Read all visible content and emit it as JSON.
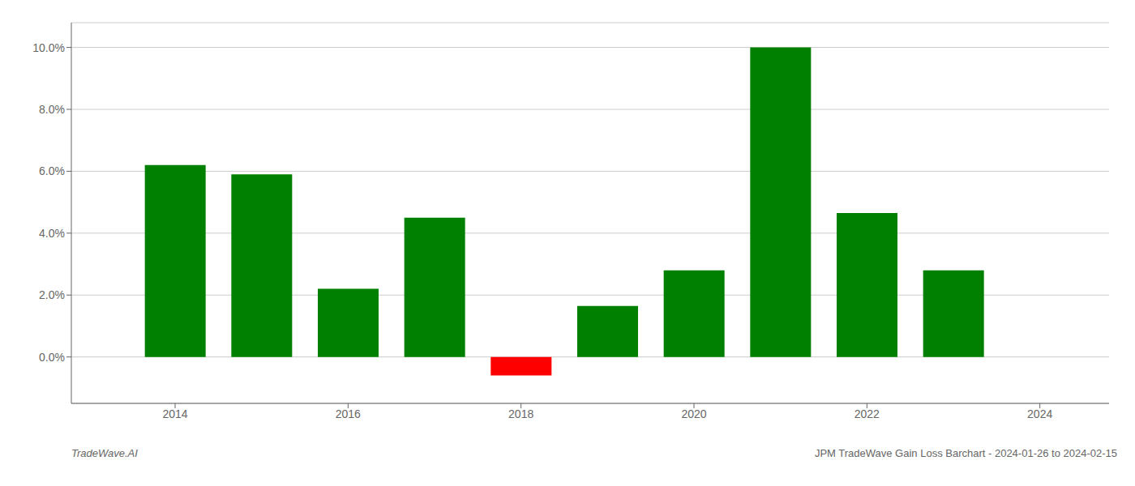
{
  "chart_data": {
    "type": "bar",
    "x": [
      2014,
      2015,
      2016,
      2017,
      2018,
      2019,
      2020,
      2021,
      2022,
      2023
    ],
    "values": [
      0.062,
      0.059,
      0.022,
      0.045,
      -0.006,
      0.0165,
      0.028,
      0.1,
      0.0465,
      0.028
    ],
    "colors": [
      "#008000",
      "#008000",
      "#008000",
      "#008000",
      "#ff0000",
      "#008000",
      "#008000",
      "#008000",
      "#008000",
      "#008000"
    ],
    "xlim": [
      2012.8,
      2024.8
    ],
    "xticks": [
      2014,
      2016,
      2018,
      2020,
      2022,
      2024
    ],
    "ylim": [
      -0.015,
      0.108
    ],
    "yticks": [
      {
        "value": 0.0,
        "label": "0.0%"
      },
      {
        "value": 0.02,
        "label": "2.0%"
      },
      {
        "value": 0.04,
        "label": "4.0%"
      },
      {
        "value": 0.06,
        "label": "6.0%"
      },
      {
        "value": 0.08,
        "label": "8.0%"
      },
      {
        "value": 0.1,
        "label": "10.0%"
      }
    ],
    "grid": true,
    "annotations": [
      "TradeWave.AI",
      "JPM TradeWave Gain Loss Barchart - 2024-01-26 to 2024-02-15"
    ]
  }
}
